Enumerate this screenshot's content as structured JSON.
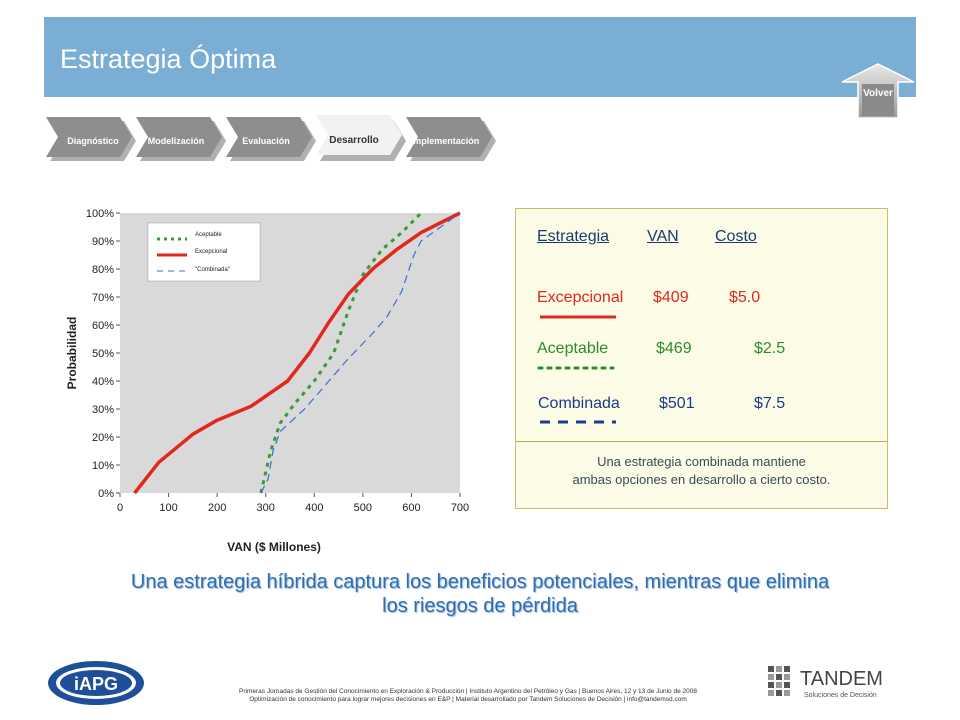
{
  "header": {
    "title": "Estrategia Óptima",
    "back_label": "Volver",
    "bg": "#7aaed4"
  },
  "process_tabs": [
    {
      "label": "Diagnóstico",
      "active": false
    },
    {
      "label": "Modelización",
      "active": false
    },
    {
      "label": "Evaluación",
      "active": false
    },
    {
      "label": "Desarrollo",
      "active": true
    },
    {
      "label": "Implementación",
      "active": false
    }
  ],
  "chart_data": {
    "type": "line",
    "xlabel": "VAN ($ Millones)",
    "ylabel": "Probabilidad",
    "xlim": [
      0,
      700
    ],
    "ylim": [
      0,
      100
    ],
    "x_ticks": [
      "0",
      "100",
      "200",
      "300",
      "400",
      "500",
      "600",
      "700"
    ],
    "y_ticks": [
      "0%",
      "10%",
      "20%",
      "30%",
      "40%",
      "50%",
      "60%",
      "70%",
      "80%",
      "90%",
      "100%"
    ],
    "legend_position": "top-left",
    "series": [
      {
        "name": "Aceptable",
        "color": "#3a9a3a",
        "style": "dotted",
        "points": [
          [
            290,
            0
          ],
          [
            310,
            15
          ],
          [
            330,
            25
          ],
          [
            360,
            32
          ],
          [
            400,
            40
          ],
          [
            440,
            50
          ],
          [
            470,
            65
          ],
          [
            500,
            78
          ],
          [
            540,
            87
          ],
          [
            580,
            93
          ],
          [
            620,
            100
          ]
        ]
      },
      {
        "name": "Excepcional",
        "color": "#e0281c",
        "style": "solid",
        "points": [
          [
            30,
            0
          ],
          [
            80,
            11
          ],
          [
            150,
            21
          ],
          [
            200,
            26
          ],
          [
            270,
            31
          ],
          [
            345,
            40
          ],
          [
            390,
            50
          ],
          [
            430,
            61
          ],
          [
            470,
            71
          ],
          [
            520,
            80
          ],
          [
            570,
            87
          ],
          [
            620,
            93
          ],
          [
            700,
            100
          ]
        ]
      },
      {
        "name": "\"Combinada\"",
        "color": "#3a6ed8",
        "style": "dashed",
        "points": [
          [
            290,
            0
          ],
          [
            305,
            5
          ],
          [
            315,
            15
          ],
          [
            330,
            22
          ],
          [
            380,
            30
          ],
          [
            430,
            40
          ],
          [
            470,
            48
          ],
          [
            520,
            57
          ],
          [
            550,
            63
          ],
          [
            580,
            72
          ],
          [
            605,
            85
          ],
          [
            620,
            90
          ],
          [
            660,
            95
          ],
          [
            700,
            100
          ]
        ]
      }
    ]
  },
  "comparison": {
    "headers": [
      "Estrategia",
      "VAN",
      "Costo"
    ],
    "rows": [
      {
        "name": "Excepcional",
        "van": "$409",
        "costo": "$5.0",
        "color": "#e0281c",
        "line": "solid"
      },
      {
        "name": "Aceptable",
        "van": "$469",
        "costo": "$2.5",
        "color": "#2e8b2e",
        "line": "dotted"
      },
      {
        "name": "Combinada",
        "van": "$501",
        "costo": "$7.5",
        "color": "#1a3a8a",
        "line": "dashed"
      }
    ],
    "note_line1": "Una estrategia combinada mantiene",
    "note_line2": "ambas opciones en desarrollo a cierto costo."
  },
  "headline": {
    "line1": "Una estrategia híbrida captura los beneficios potenciales, mientras que elimina",
    "line2": "los riesgos de pérdida"
  },
  "footer": {
    "line1": "Primeras Jornadas de Gestión del Conocimiento en Exploración & Producción | Instituto Argentino del Petróleo y Gas | Buenos Aires, 12 y 13 de Junio de 2008",
    "line2": "Optimización de conocimiento para lograr mejores decisiones en E&P | Material desarrollado por Tandem Soluciones de Decisión | info@tandemsd.com",
    "left_logo_text": "iAPG",
    "right_logo_name": "TANDEM",
    "right_logo_tagline": "Soluciones de Decisión"
  }
}
